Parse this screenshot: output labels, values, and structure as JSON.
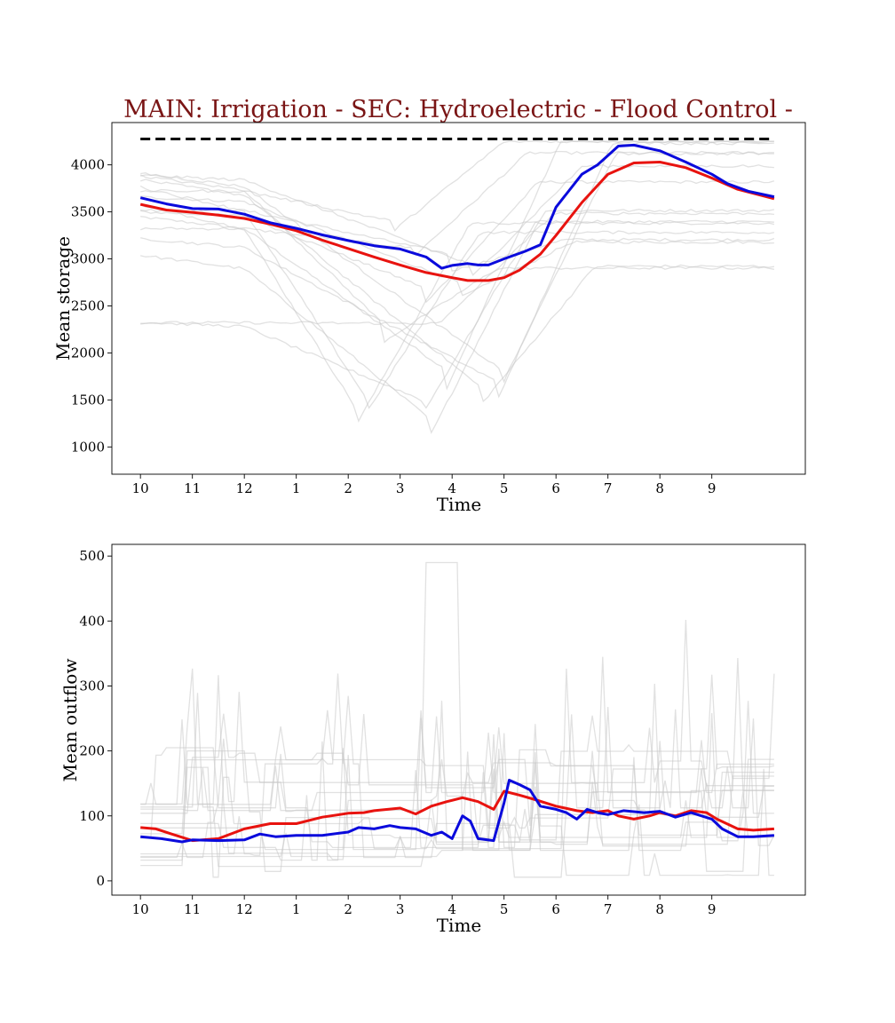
{
  "figure": {
    "title": "MAIN: Irrigation - SEC: Hydroelectric - Flood Control -"
  },
  "colors": {
    "title": "#7a1515",
    "blue": "#0a0adc",
    "red": "#e8130f",
    "target": "#000000",
    "ensemble": "#c8c8c8"
  },
  "chart_data": [
    {
      "type": "line",
      "panel": "storage",
      "title": "",
      "xlabel": "Time",
      "ylabel": "Mean storage",
      "x_ticks": [
        "10",
        "11",
        "12",
        "1",
        "2",
        "3",
        "4",
        "5",
        "6",
        "7",
        "8",
        "9"
      ],
      "x_tick_positions": [
        0,
        1,
        2,
        3,
        4,
        5,
        6,
        7,
        8,
        9,
        10,
        11
      ],
      "xlim": [
        -0.55,
        12.8
      ],
      "y_ticks": [
        1000,
        1500,
        2000,
        2500,
        3000,
        3500,
        4000
      ],
      "ylim": [
        710,
        4450
      ],
      "reference_line": {
        "y": 4275,
        "style": "dashed",
        "x_range": [
          0,
          12.2
        ]
      },
      "series": [
        {
          "color": "blue",
          "points": [
            [
              0,
              3650
            ],
            [
              0.5,
              3585
            ],
            [
              1,
              3535
            ],
            [
              1.5,
              3530
            ],
            [
              2,
              3475
            ],
            [
              2.5,
              3385
            ],
            [
              3,
              3325
            ],
            [
              3.5,
              3255
            ],
            [
              4,
              3195
            ],
            [
              4.5,
              3140
            ],
            [
              5,
              3105
            ],
            [
              5.5,
              3020
            ],
            [
              5.8,
              2900
            ],
            [
              6,
              2930
            ],
            [
              6.3,
              2950
            ],
            [
              6.5,
              2935
            ],
            [
              6.7,
              2935
            ],
            [
              7,
              3000
            ],
            [
              7.4,
              3080
            ],
            [
              7.7,
              3150
            ],
            [
              8,
              3550
            ],
            [
              8.5,
              3900
            ],
            [
              8.8,
              4000
            ],
            [
              9,
              4100
            ],
            [
              9.2,
              4200
            ],
            [
              9.5,
              4210
            ],
            [
              10,
              4150
            ],
            [
              10.5,
              4030
            ],
            [
              11,
              3900
            ],
            [
              11.3,
              3800
            ],
            [
              11.7,
              3720
            ],
            [
              12.2,
              3660
            ]
          ]
        },
        {
          "color": "red",
          "points": [
            [
              0,
              3580
            ],
            [
              0.5,
              3520
            ],
            [
              1,
              3495
            ],
            [
              1.5,
              3465
            ],
            [
              2,
              3430
            ],
            [
              2.5,
              3370
            ],
            [
              3,
              3300
            ],
            [
              3.5,
              3200
            ],
            [
              4,
              3110
            ],
            [
              4.5,
              3020
            ],
            [
              5,
              2935
            ],
            [
              5.5,
              2855
            ],
            [
              6,
              2800
            ],
            [
              6.3,
              2770
            ],
            [
              6.7,
              2770
            ],
            [
              7,
              2800
            ],
            [
              7.3,
              2880
            ],
            [
              7.7,
              3050
            ],
            [
              8,
              3250
            ],
            [
              8.5,
              3600
            ],
            [
              9,
              3900
            ],
            [
              9.5,
              4020
            ],
            [
              10,
              4030
            ],
            [
              10.5,
              3970
            ],
            [
              11,
              3860
            ],
            [
              11.5,
              3740
            ],
            [
              12.2,
              3640
            ]
          ]
        }
      ]
    },
    {
      "type": "line",
      "panel": "outflow",
      "title": "",
      "xlabel": "Time",
      "ylabel": "Mean outflow",
      "x_ticks": [
        "10",
        "11",
        "12",
        "1",
        "2",
        "3",
        "4",
        "5",
        "6",
        "7",
        "8",
        "9"
      ],
      "x_tick_positions": [
        0,
        1,
        2,
        3,
        4,
        5,
        6,
        7,
        8,
        9,
        10,
        11
      ],
      "xlim": [
        -0.55,
        12.8
      ],
      "y_ticks": [
        0,
        100,
        200,
        300,
        400,
        500
      ],
      "ylim": [
        -22,
        518
      ],
      "series": [
        {
          "color": "blue",
          "points": [
            [
              0,
              68
            ],
            [
              0.4,
              65
            ],
            [
              0.8,
              60
            ],
            [
              1,
              63
            ],
            [
              1.5,
              62
            ],
            [
              2,
              63
            ],
            [
              2.3,
              72
            ],
            [
              2.6,
              68
            ],
            [
              3,
              70
            ],
            [
              3.5,
              70
            ],
            [
              4,
              75
            ],
            [
              4.2,
              82
            ],
            [
              4.5,
              80
            ],
            [
              4.8,
              85
            ],
            [
              5,
              82
            ],
            [
              5.3,
              80
            ],
            [
              5.6,
              70
            ],
            [
              5.8,
              75
            ],
            [
              6,
              65
            ],
            [
              6.2,
              100
            ],
            [
              6.35,
              92
            ],
            [
              6.5,
              65
            ],
            [
              6.8,
              62
            ],
            [
              7,
              120
            ],
            [
              7.1,
              155
            ],
            [
              7.3,
              148
            ],
            [
              7.5,
              140
            ],
            [
              7.7,
              115
            ],
            [
              8,
              110
            ],
            [
              8.2,
              105
            ],
            [
              8.4,
              95
            ],
            [
              8.6,
              110
            ],
            [
              8.8,
              105
            ],
            [
              9,
              102
            ],
            [
              9.3,
              108
            ],
            [
              9.7,
              105
            ],
            [
              10,
              107
            ],
            [
              10.3,
              98
            ],
            [
              10.6,
              105
            ],
            [
              11,
              95
            ],
            [
              11.2,
              80
            ],
            [
              11.5,
              68
            ],
            [
              11.8,
              68
            ],
            [
              12.2,
              70
            ]
          ]
        },
        {
          "color": "red",
          "points": [
            [
              0,
              82
            ],
            [
              0.3,
              80
            ],
            [
              0.6,
              72
            ],
            [
              1,
              62
            ],
            [
              1.5,
              65
            ],
            [
              2,
              80
            ],
            [
              2.5,
              88
            ],
            [
              3,
              88
            ],
            [
              3.5,
              98
            ],
            [
              4,
              104
            ],
            [
              4.3,
              105
            ],
            [
              4.5,
              108
            ],
            [
              5,
              112
            ],
            [
              5.3,
              103
            ],
            [
              5.6,
              115
            ],
            [
              5.9,
              122
            ],
            [
              6.2,
              128
            ],
            [
              6.5,
              122
            ],
            [
              6.8,
              110
            ],
            [
              7,
              138
            ],
            [
              7.3,
              132
            ],
            [
              7.6,
              125
            ],
            [
              8,
              115
            ],
            [
              8.4,
              108
            ],
            [
              8.7,
              105
            ],
            [
              9,
              108
            ],
            [
              9.2,
              100
            ],
            [
              9.5,
              95
            ],
            [
              9.8,
              100
            ],
            [
              10,
              105
            ],
            [
              10.3,
              100
            ],
            [
              10.6,
              108
            ],
            [
              10.9,
              105
            ],
            [
              11.1,
              95
            ],
            [
              11.5,
              80
            ],
            [
              11.8,
              78
            ],
            [
              12.2,
              80
            ]
          ]
        }
      ]
    }
  ]
}
